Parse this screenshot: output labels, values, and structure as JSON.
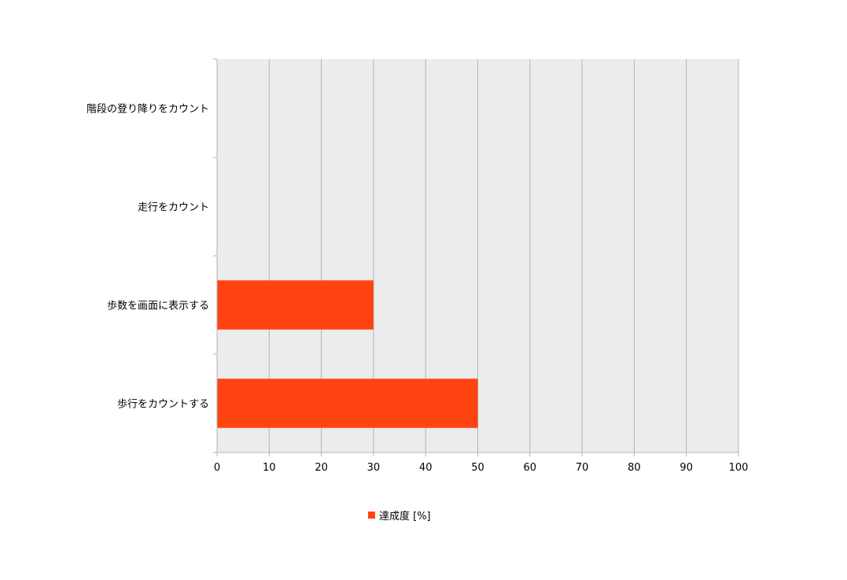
{
  "chart_data": {
    "type": "bar",
    "orientation": "horizontal",
    "categories": [
      "階段の登り降りをカウント",
      "走行をカウント",
      "歩数を画面に表示する",
      "歩行をカウントする"
    ],
    "series": [
      {
        "name": "達成度 [%]",
        "values": [
          0,
          0,
          30,
          50
        ],
        "color": "#ff4411"
      }
    ],
    "xlim": [
      0,
      100
    ],
    "xticks": [
      0,
      10,
      20,
      30,
      40,
      50,
      60,
      70,
      80,
      90,
      100
    ],
    "grid": true,
    "plot_background": "#ececec",
    "gridline_color": "#b3b3b3",
    "legend_position": "bottom"
  }
}
